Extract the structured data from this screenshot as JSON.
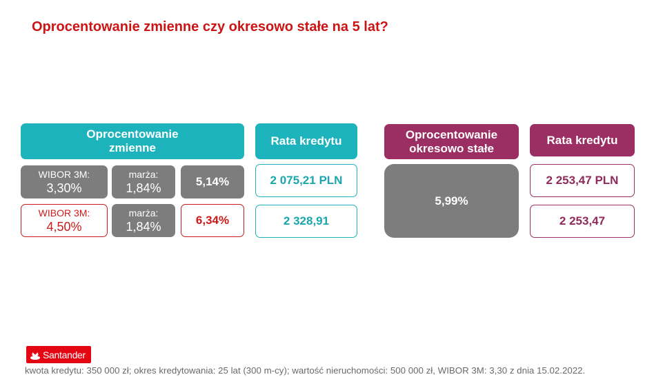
{
  "title": "Oprocentowanie zmienne czy okresowo stałe na 5 lat?",
  "variable": {
    "header": [
      "Oprocentowanie",
      "zmienne"
    ],
    "rate_header": "Rata kredytu",
    "row1": {
      "wibor_label": "WIBOR 3M:",
      "wibor_value": "3,30%",
      "margin_label": "marża:",
      "margin_value": "1,84%",
      "total": "5,14%",
      "installment": "2 075,21 PLN"
    },
    "row2": {
      "wibor_label": "WIBOR 3M:",
      "wibor_value": "4,50%",
      "margin_label": "marża:",
      "margin_value": "1,84%",
      "total": "6,34%",
      "installment": "2 328,91"
    }
  },
  "fixed": {
    "header": [
      "Oprocentowanie",
      "okresowo stałe"
    ],
    "rate_header": "Rata kredytu",
    "rate": "5,99%",
    "installment1": "2 253,47 PLN",
    "installment2": "2 253,47"
  },
  "logo": {
    "text": "Santander"
  },
  "footnote": "kwota kredytu: 350 000 zł; okres kredytowania: 25 lat (300 m-cy); wartość nieruchomości: 500 000 zł, WIBOR 3M: 3,30 z dnia 15.02.2022.",
  "colors": {
    "title_red": "#cc1414",
    "teal": "#1cb3bc",
    "plum": "#9b2f63",
    "grey": "#7d7d7d",
    "santander_red": "#e30613"
  }
}
